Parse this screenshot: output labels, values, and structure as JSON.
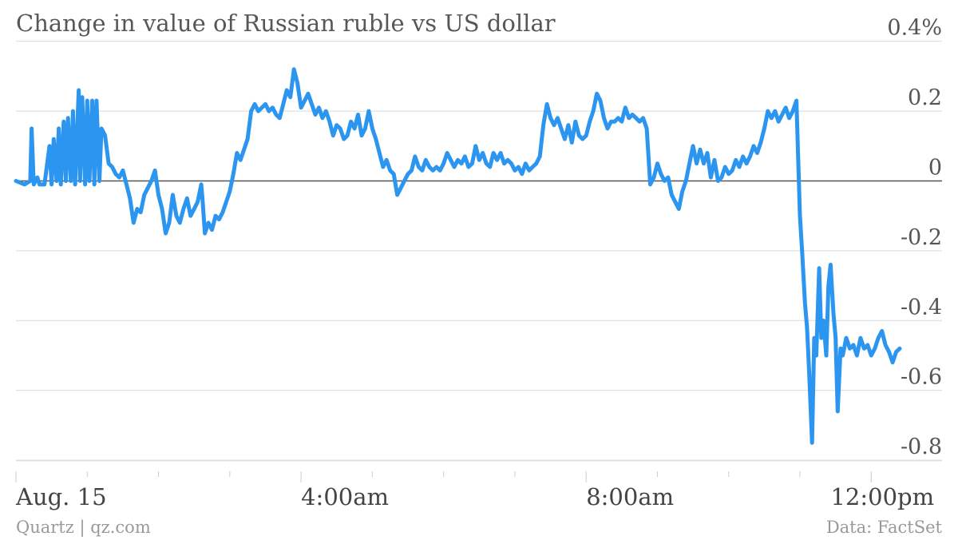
{
  "chart_data": {
    "type": "line",
    "title": "Change in value of Russian ruble vs US dollar",
    "xlabel": "",
    "ylabel": "",
    "y_unit": "%",
    "ylim": [
      -0.8,
      0.4
    ],
    "y_ticks": [
      {
        "value": 0.4,
        "label": "0.4%"
      },
      {
        "value": 0.2,
        "label": "0.2"
      },
      {
        "value": 0,
        "label": "0"
      },
      {
        "value": -0.2,
        "label": "-0.2"
      },
      {
        "value": -0.4,
        "label": "-0.4"
      },
      {
        "value": -0.6,
        "label": "-0.6"
      },
      {
        "value": -0.8,
        "label": "-0.8"
      }
    ],
    "x_unit": "hours since midnight, Aug. 15",
    "xlim": [
      0,
      12.4
    ],
    "x_ticks": [
      {
        "value": 0,
        "label": "Aug. 15"
      },
      {
        "value": 4,
        "label": "4:00am"
      },
      {
        "value": 8,
        "label": "8:00am"
      },
      {
        "value": 12,
        "label": "12:00pm"
      }
    ],
    "grid": true,
    "line_color": "#2c95ef",
    "series": [
      {
        "name": "",
        "points": [
          [
            0.0,
            0.0
          ],
          [
            0.12,
            -0.01
          ],
          [
            0.2,
            0.0
          ],
          [
            0.22,
            0.15
          ],
          [
            0.25,
            -0.01
          ],
          [
            0.3,
            0.01
          ],
          [
            0.33,
            -0.01
          ],
          [
            0.4,
            -0.01
          ],
          [
            0.47,
            0.1
          ],
          [
            0.5,
            -0.01
          ],
          [
            0.53,
            0.12
          ],
          [
            0.57,
            0.0
          ],
          [
            0.6,
            0.15
          ],
          [
            0.63,
            -0.01
          ],
          [
            0.67,
            0.17
          ],
          [
            0.7,
            0.0
          ],
          [
            0.73,
            0.18
          ],
          [
            0.77,
            0.0
          ],
          [
            0.8,
            0.2
          ],
          [
            0.83,
            -0.01
          ],
          [
            0.88,
            0.26
          ],
          [
            0.9,
            0.0
          ],
          [
            0.93,
            0.24
          ],
          [
            0.97,
            -0.01
          ],
          [
            1.0,
            0.23
          ],
          [
            1.03,
            0.0
          ],
          [
            1.07,
            0.23
          ],
          [
            1.1,
            -0.01
          ],
          [
            1.13,
            0.23
          ],
          [
            1.17,
            0.0
          ],
          [
            1.2,
            0.15
          ],
          [
            1.25,
            0.13
          ],
          [
            1.3,
            0.05
          ],
          [
            1.35,
            0.04
          ],
          [
            1.4,
            0.02
          ],
          [
            1.45,
            0.01
          ],
          [
            1.5,
            0.03
          ],
          [
            1.55,
            -0.01
          ],
          [
            1.6,
            -0.05
          ],
          [
            1.65,
            -0.12
          ],
          [
            1.7,
            -0.08
          ],
          [
            1.75,
            -0.09
          ],
          [
            1.8,
            -0.04
          ],
          [
            1.85,
            -0.02
          ],
          [
            1.9,
            0.0
          ],
          [
            1.95,
            0.03
          ],
          [
            2.0,
            -0.04
          ],
          [
            2.05,
            -0.08
          ],
          [
            2.1,
            -0.15
          ],
          [
            2.15,
            -0.12
          ],
          [
            2.2,
            -0.04
          ],
          [
            2.25,
            -0.1
          ],
          [
            2.3,
            -0.12
          ],
          [
            2.35,
            -0.08
          ],
          [
            2.4,
            -0.05
          ],
          [
            2.45,
            -0.1
          ],
          [
            2.5,
            -0.08
          ],
          [
            2.55,
            -0.06
          ],
          [
            2.6,
            -0.01
          ],
          [
            2.62,
            -0.06
          ],
          [
            2.65,
            -0.15
          ],
          [
            2.7,
            -0.12
          ],
          [
            2.75,
            -0.14
          ],
          [
            2.8,
            -0.1
          ],
          [
            2.85,
            -0.11
          ],
          [
            2.9,
            -0.09
          ],
          [
            2.95,
            -0.06
          ],
          [
            3.0,
            -0.03
          ],
          [
            3.05,
            0.02
          ],
          [
            3.1,
            0.08
          ],
          [
            3.15,
            0.06
          ],
          [
            3.2,
            0.09
          ],
          [
            3.25,
            0.12
          ],
          [
            3.3,
            0.2
          ],
          [
            3.35,
            0.22
          ],
          [
            3.4,
            0.2
          ],
          [
            3.45,
            0.21
          ],
          [
            3.5,
            0.22
          ],
          [
            3.55,
            0.2
          ],
          [
            3.6,
            0.21
          ],
          [
            3.65,
            0.19
          ],
          [
            3.7,
            0.18
          ],
          [
            3.75,
            0.22
          ],
          [
            3.8,
            0.26
          ],
          [
            3.85,
            0.24
          ],
          [
            3.9,
            0.32
          ],
          [
            3.95,
            0.28
          ],
          [
            4.0,
            0.21
          ],
          [
            4.05,
            0.23
          ],
          [
            4.1,
            0.25
          ],
          [
            4.15,
            0.22
          ],
          [
            4.2,
            0.19
          ],
          [
            4.25,
            0.21
          ],
          [
            4.3,
            0.18
          ],
          [
            4.35,
            0.2
          ],
          [
            4.4,
            0.17
          ],
          [
            4.45,
            0.13
          ],
          [
            4.5,
            0.16
          ],
          [
            4.55,
            0.15
          ],
          [
            4.6,
            0.12
          ],
          [
            4.65,
            0.13
          ],
          [
            4.7,
            0.17
          ],
          [
            4.75,
            0.15
          ],
          [
            4.8,
            0.19
          ],
          [
            4.85,
            0.13
          ],
          [
            4.9,
            0.15
          ],
          [
            4.95,
            0.2
          ],
          [
            5.0,
            0.15
          ],
          [
            5.05,
            0.12
          ],
          [
            5.1,
            0.08
          ],
          [
            5.15,
            0.04
          ],
          [
            5.2,
            0.06
          ],
          [
            5.25,
            0.03
          ],
          [
            5.3,
            0.02
          ],
          [
            5.35,
            -0.04
          ],
          [
            5.4,
            -0.02
          ],
          [
            5.45,
            0.0
          ],
          [
            5.5,
            0.02
          ],
          [
            5.55,
            0.03
          ],
          [
            5.6,
            0.07
          ],
          [
            5.65,
            0.04
          ],
          [
            5.7,
            0.03
          ],
          [
            5.75,
            0.06
          ],
          [
            5.8,
            0.04
          ],
          [
            5.85,
            0.03
          ],
          [
            5.9,
            0.04
          ],
          [
            5.95,
            0.03
          ],
          [
            6.0,
            0.05
          ],
          [
            6.05,
            0.08
          ],
          [
            6.1,
            0.06
          ],
          [
            6.15,
            0.04
          ],
          [
            6.2,
            0.06
          ],
          [
            6.25,
            0.05
          ],
          [
            6.3,
            0.07
          ],
          [
            6.35,
            0.04
          ],
          [
            6.4,
            0.05
          ],
          [
            6.45,
            0.1
          ],
          [
            6.5,
            0.06
          ],
          [
            6.55,
            0.08
          ],
          [
            6.6,
            0.05
          ],
          [
            6.65,
            0.04
          ],
          [
            6.7,
            0.08
          ],
          [
            6.75,
            0.06
          ],
          [
            6.8,
            0.08
          ],
          [
            6.85,
            0.05
          ],
          [
            6.9,
            0.06
          ],
          [
            6.95,
            0.05
          ],
          [
            7.0,
            0.03
          ],
          [
            7.05,
            0.04
          ],
          [
            7.1,
            0.02
          ],
          [
            7.15,
            0.05
          ],
          [
            7.2,
            0.03
          ],
          [
            7.25,
            0.04
          ],
          [
            7.3,
            0.05
          ],
          [
            7.35,
            0.07
          ],
          [
            7.4,
            0.16
          ],
          [
            7.45,
            0.22
          ],
          [
            7.5,
            0.18
          ],
          [
            7.55,
            0.16
          ],
          [
            7.6,
            0.18
          ],
          [
            7.65,
            0.15
          ],
          [
            7.7,
            0.12
          ],
          [
            7.75,
            0.16
          ],
          [
            7.8,
            0.11
          ],
          [
            7.85,
            0.17
          ],
          [
            7.9,
            0.13
          ],
          [
            7.95,
            0.12
          ],
          [
            8.0,
            0.13
          ],
          [
            8.05,
            0.17
          ],
          [
            8.1,
            0.2
          ],
          [
            8.15,
            0.25
          ],
          [
            8.2,
            0.23
          ],
          [
            8.25,
            0.18
          ],
          [
            8.3,
            0.15
          ],
          [
            8.35,
            0.17
          ],
          [
            8.4,
            0.17
          ],
          [
            8.45,
            0.18
          ],
          [
            8.5,
            0.17
          ],
          [
            8.55,
            0.21
          ],
          [
            8.6,
            0.18
          ],
          [
            8.65,
            0.19
          ],
          [
            8.7,
            0.18
          ],
          [
            8.75,
            0.17
          ],
          [
            8.8,
            0.18
          ],
          [
            8.85,
            0.15
          ],
          [
            8.9,
            -0.01
          ],
          [
            8.95,
            0.01
          ],
          [
            9.0,
            0.05
          ],
          [
            9.05,
            0.02
          ],
          [
            9.1,
            0.0
          ],
          [
            9.15,
            0.01
          ],
          [
            9.2,
            -0.04
          ],
          [
            9.25,
            -0.06
          ],
          [
            9.3,
            -0.08
          ],
          [
            9.35,
            -0.03
          ],
          [
            9.4,
            0.0
          ],
          [
            9.45,
            0.05
          ],
          [
            9.5,
            0.1
          ],
          [
            9.55,
            0.05
          ],
          [
            9.6,
            0.09
          ],
          [
            9.65,
            0.05
          ],
          [
            9.7,
            0.08
          ],
          [
            9.75,
            0.01
          ],
          [
            9.8,
            0.06
          ],
          [
            9.85,
            0.0
          ],
          [
            9.9,
            0.01
          ],
          [
            9.95,
            0.04
          ],
          [
            10.0,
            0.02
          ],
          [
            10.05,
            0.03
          ],
          [
            10.1,
            0.06
          ],
          [
            10.15,
            0.04
          ],
          [
            10.2,
            0.07
          ],
          [
            10.25,
            0.05
          ],
          [
            10.3,
            0.07
          ],
          [
            10.35,
            0.1
          ],
          [
            10.4,
            0.08
          ],
          [
            10.45,
            0.11
          ],
          [
            10.5,
            0.15
          ],
          [
            10.55,
            0.2
          ],
          [
            10.6,
            0.18
          ],
          [
            10.65,
            0.2
          ],
          [
            10.7,
            0.17
          ],
          [
            10.75,
            0.19
          ],
          [
            10.8,
            0.21
          ],
          [
            10.85,
            0.18
          ],
          [
            10.9,
            0.2
          ],
          [
            10.95,
            0.23
          ],
          [
            11.0,
            -0.1
          ],
          [
            11.03,
            -0.2
          ],
          [
            11.07,
            -0.35
          ],
          [
            11.1,
            -0.42
          ],
          [
            11.13,
            -0.55
          ],
          [
            11.17,
            -0.75
          ],
          [
            11.2,
            -0.45
          ],
          [
            11.23,
            -0.5
          ],
          [
            11.27,
            -0.25
          ],
          [
            11.3,
            -0.45
          ],
          [
            11.33,
            -0.4
          ],
          [
            11.37,
            -0.5
          ],
          [
            11.4,
            -0.3
          ],
          [
            11.43,
            -0.24
          ],
          [
            11.47,
            -0.38
          ],
          [
            11.5,
            -0.45
          ],
          [
            11.53,
            -0.66
          ],
          [
            11.57,
            -0.48
          ],
          [
            11.6,
            -0.5
          ],
          [
            11.65,
            -0.45
          ],
          [
            11.7,
            -0.48
          ],
          [
            11.75,
            -0.47
          ],
          [
            11.8,
            -0.5
          ],
          [
            11.85,
            -0.45
          ],
          [
            11.9,
            -0.48
          ],
          [
            11.95,
            -0.47
          ],
          [
            12.0,
            -0.5
          ],
          [
            12.05,
            -0.48
          ],
          [
            12.1,
            -0.45
          ],
          [
            12.15,
            -0.43
          ],
          [
            12.2,
            -0.47
          ],
          [
            12.25,
            -0.49
          ],
          [
            12.3,
            -0.52
          ],
          [
            12.35,
            -0.49
          ],
          [
            12.4,
            -0.48
          ]
        ]
      }
    ],
    "source_left": "Quartz | qz.com",
    "source_right": "Data: FactSet"
  }
}
